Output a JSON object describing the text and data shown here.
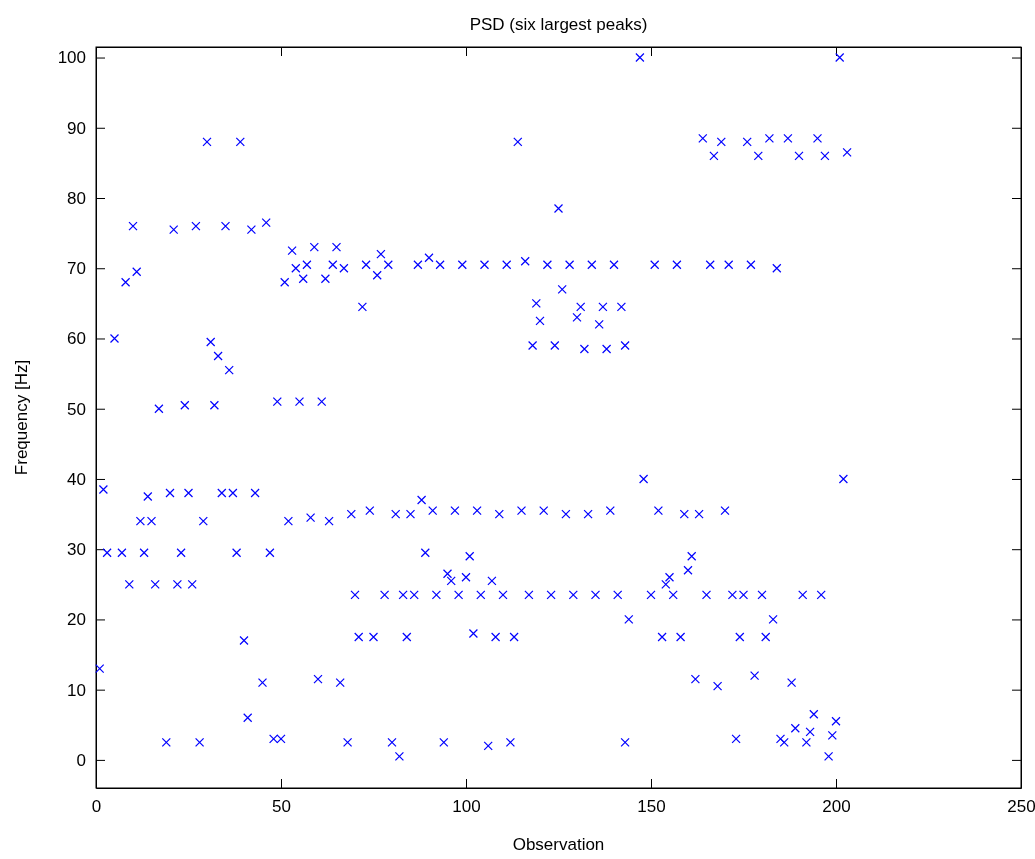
{
  "chart_data": {
    "type": "scatter",
    "title": "PSD (six largest peaks)",
    "xlabel": "Observation",
    "ylabel": "Frequency [Hz]",
    "marker": "cross",
    "grid": false,
    "xlim": [
      0,
      250
    ],
    "xticks": [
      0,
      50,
      100,
      150,
      200,
      250
    ],
    "ylim": [
      -4,
      101.5
    ],
    "yticks": [
      0,
      10,
      20,
      30,
      40,
      50,
      60,
      70,
      80,
      90,
      100
    ],
    "series": [
      {
        "color": "#0000ff",
        "x": [
          1,
          2,
          3,
          5,
          7,
          8,
          9,
          10,
          11,
          12,
          13,
          14,
          15,
          16,
          17,
          19,
          20,
          21,
          22,
          23,
          24,
          25,
          26,
          27,
          28,
          29,
          30,
          31,
          32,
          33,
          34,
          35,
          36,
          37,
          38,
          39,
          40,
          41,
          42,
          43,
          45,
          46,
          47,
          48,
          49,
          50,
          51,
          52,
          53,
          54,
          55,
          56,
          57,
          58,
          59,
          60,
          61,
          62,
          63,
          64,
          65,
          66,
          67,
          68,
          69,
          70,
          71,
          72,
          73,
          74,
          75,
          76,
          77,
          78,
          79,
          80,
          81,
          82,
          83,
          84,
          85,
          86,
          87,
          88,
          89,
          90,
          91,
          92,
          93,
          94,
          95,
          96,
          97,
          98,
          99,
          100,
          101,
          102,
          103,
          104,
          105,
          106,
          107,
          108,
          109,
          110,
          111,
          112,
          113,
          114,
          115,
          116,
          117,
          118,
          119,
          120,
          121,
          122,
          123,
          124,
          125,
          126,
          127,
          128,
          129,
          130,
          131,
          132,
          133,
          134,
          135,
          136,
          137,
          138,
          139,
          140,
          141,
          142,
          143,
          143,
          144,
          147,
          148,
          150,
          151,
          152,
          153,
          154,
          155,
          156,
          157,
          158,
          159,
          160,
          161,
          162,
          163,
          164,
          165,
          166,
          167,
          168,
          169,
          170,
          171,
          172,
          173,
          174,
          175,
          176,
          177,
          178,
          179,
          180,
          181,
          182,
          183,
          184,
          185,
          186,
          187,
          188,
          189,
          190,
          191,
          192,
          193,
          194,
          195,
          196,
          197,
          198,
          199,
          200,
          201,
          202,
          203
        ],
        "values": [
          13,
          38.5,
          29.5,
          60,
          29.5,
          68,
          25,
          76,
          69.5,
          34,
          29.5,
          37.5,
          34,
          25,
          50,
          2.5,
          38,
          75.5,
          25,
          29.5,
          50.5,
          38,
          25,
          76,
          2.5,
          34,
          88,
          59.5,
          50.5,
          57.5,
          38,
          76,
          55.5,
          38,
          29.5,
          88,
          17,
          6,
          75.5,
          38,
          11,
          76.5,
          29.5,
          3,
          51,
          3,
          68,
          34,
          72.5,
          70,
          51,
          68.5,
          70.5,
          34.5,
          73,
          11.5,
          51,
          68.5,
          34,
          70.5,
          73,
          11,
          70,
          2.5,
          35,
          23.5,
          17.5,
          64.5,
          70.5,
          35.5,
          17.5,
          69,
          72,
          23.5,
          70.5,
          2.5,
          35,
          0.5,
          23.5,
          17.5,
          35,
          23.5,
          70.5,
          37,
          29.5,
          71.5,
          35.5,
          23.5,
          70.5,
          2.5,
          26.5,
          25.5,
          35.5,
          23.5,
          70.5,
          26,
          29,
          18,
          35.5,
          23.5,
          70.5,
          2,
          25.5,
          17.5,
          35,
          23.5,
          70.5,
          2.5,
          17.5,
          88,
          35.5,
          71,
          23.5,
          59,
          65,
          62.5,
          35.5,
          70.5,
          23.5,
          59,
          78.5,
          67,
          35,
          70.5,
          23.5,
          63,
          64.5,
          58.5,
          35,
          70.5,
          23.5,
          62,
          64.5,
          58.5,
          35.5,
          70.5,
          23.5,
          64.5,
          59,
          2.5,
          20,
          100,
          40,
          23.5,
          70.5,
          35.5,
          17.5,
          25,
          26,
          23.5,
          70.5,
          17.5,
          35,
          27,
          29,
          11.5,
          35,
          88.5,
          23.5,
          70.5,
          86,
          10.5,
          88,
          35.5,
          70.5,
          23.5,
          3,
          17.5,
          23.5,
          88,
          70.5,
          12,
          86,
          23.5,
          17.5,
          88.5,
          20,
          70,
          3,
          2.5,
          88.5,
          11,
          4.5,
          86,
          23.5,
          2.5,
          4,
          6.5,
          88.5,
          23.5,
          86,
          0.5,
          3.5,
          5.5,
          100,
          40,
          86.5
        ]
      }
    ]
  }
}
